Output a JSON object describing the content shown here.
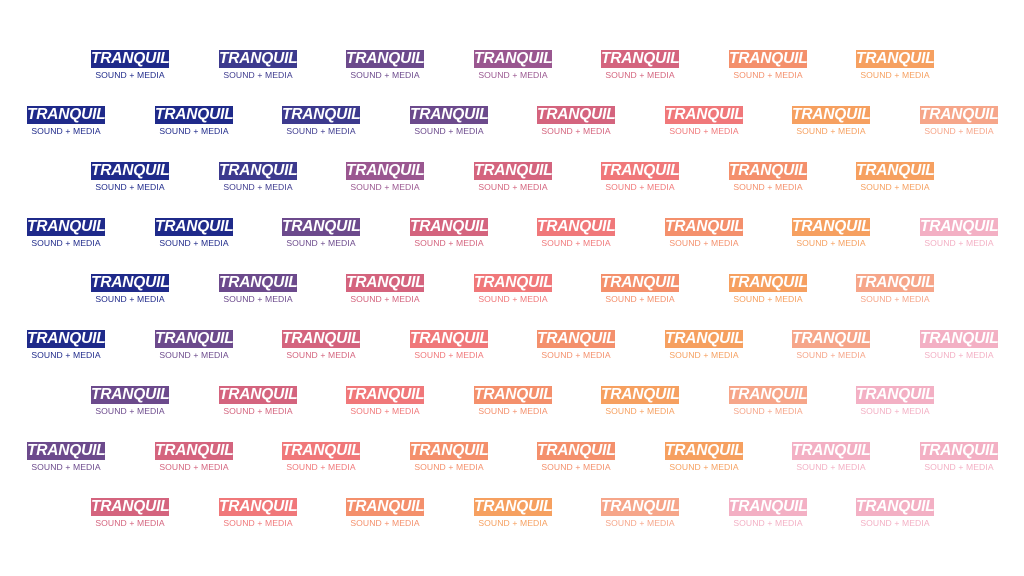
{
  "brand": {
    "wordmark": "TRANQUIL",
    "tagline": "SOUND + MEDIA"
  },
  "palette": [
    "#1f2a8a",
    "#3d3a8e",
    "#6c4a8c",
    "#9a5790",
    "#d4647e",
    "#f0787a",
    "#f4906c",
    "#f6a060",
    "#f6a68a",
    "#f3b0c4"
  ],
  "rows": [
    {
      "offset": false,
      "colors": [
        0,
        1,
        2,
        3,
        4,
        6,
        7
      ]
    },
    {
      "offset": true,
      "colors": [
        0,
        0,
        1,
        2,
        4,
        5,
        7,
        8
      ]
    },
    {
      "offset": false,
      "colors": [
        0,
        1,
        3,
        4,
        5,
        6,
        7
      ]
    },
    {
      "offset": true,
      "colors": [
        0,
        0,
        2,
        4,
        5,
        6,
        7,
        9
      ]
    },
    {
      "offset": false,
      "colors": [
        0,
        2,
        4,
        5,
        6,
        7,
        8
      ]
    },
    {
      "offset": true,
      "colors": [
        0,
        2,
        4,
        5,
        6,
        7,
        8,
        9
      ]
    },
    {
      "offset": false,
      "colors": [
        2,
        4,
        5,
        6,
        7,
        8,
        9
      ]
    },
    {
      "offset": true,
      "colors": [
        2,
        4,
        5,
        6,
        6,
        7,
        9,
        9
      ]
    },
    {
      "offset": false,
      "colors": [
        4,
        5,
        6,
        7,
        8,
        9,
        9
      ]
    }
  ]
}
